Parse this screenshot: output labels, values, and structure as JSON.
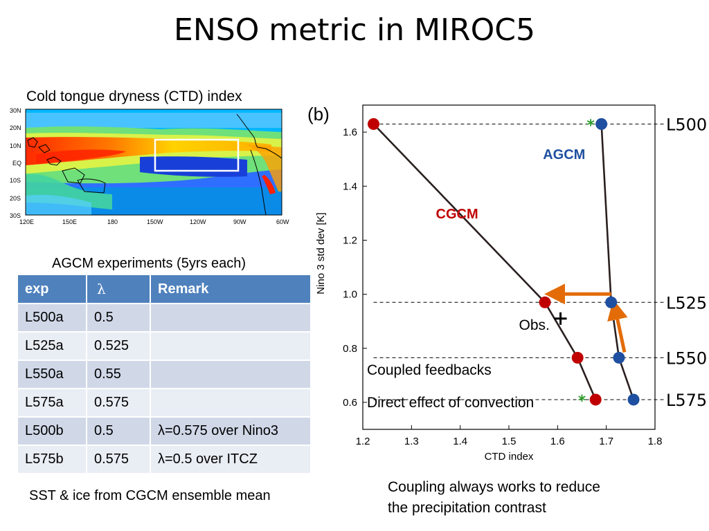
{
  "slide": {
    "title": "ENSO metric in MIROC5",
    "ctd_caption": "Cold tongue dryness (CTD) index",
    "agcm_caption": "AGCM experiments (5yrs each)",
    "sst_caption": "SST & ice from CGCM ensemble mean",
    "bottom_note_line1": "Coupling always works to reduce",
    "bottom_note_line2": "the precipitation contrast"
  },
  "map": {
    "lat_labels": [
      "30N",
      "20N",
      "10N",
      "EQ",
      "10S",
      "20S",
      "30S"
    ],
    "lon_labels": [
      "120E",
      "150E",
      "180",
      "150W",
      "120W",
      "90W",
      "60W"
    ]
  },
  "table": {
    "headers": [
      "exp",
      "λ",
      "Remark"
    ],
    "rows": [
      [
        "L500a",
        "0.5",
        ""
      ],
      [
        "L525a",
        "0.525",
        ""
      ],
      [
        "L550a",
        "0.55",
        ""
      ],
      [
        "L575a",
        "0.575",
        ""
      ],
      [
        "L500b",
        "0.5",
        "λ=0.575 over Nino3"
      ],
      [
        "L575b",
        "0.575",
        "λ=0.5 over ITCZ"
      ]
    ]
  },
  "chart_data": {
    "type": "scatter",
    "panel_label": "(b)",
    "xlabel": "CTD index",
    "ylabel": "Nino 3 std dev [K]",
    "xlim": [
      1.2,
      1.8
    ],
    "ylim": [
      0.5,
      1.7
    ],
    "xticks": [
      "1.2",
      "1.3",
      "1.4",
      "1.5",
      "1.6",
      "1.7",
      "1.8"
    ],
    "yticks": [
      "0.6",
      "0.8",
      "1.0",
      "1.2",
      "1.4",
      "1.6"
    ],
    "series": [
      {
        "name": "CGCM",
        "color": "#c00000",
        "x": [
          1.222,
          1.574,
          1.641,
          1.678
        ],
        "y": [
          1.63,
          0.97,
          0.765,
          0.61
        ]
      },
      {
        "name": "AGCM",
        "color": "#1f4fa0",
        "x": [
          1.69,
          1.71,
          1.726,
          1.756
        ],
        "y": [
          1.63,
          0.97,
          0.765,
          0.61
        ]
      }
    ],
    "reference_levels": [
      {
        "label": "L500",
        "y": 1.63
      },
      {
        "label": "L525",
        "y": 0.97
      },
      {
        "label": "L550",
        "y": 0.765
      },
      {
        "label": "L575",
        "y": 0.61
      }
    ],
    "green_markers": [
      {
        "x": 1.668,
        "y": 1.63
      },
      {
        "x": 1.65,
        "y": 0.61
      }
    ],
    "obs": {
      "label": "Obs.",
      "x": 1.606,
      "y": 0.91
    },
    "annotations": [
      "Coupled feedbacks",
      "Direct effect of convection"
    ]
  }
}
